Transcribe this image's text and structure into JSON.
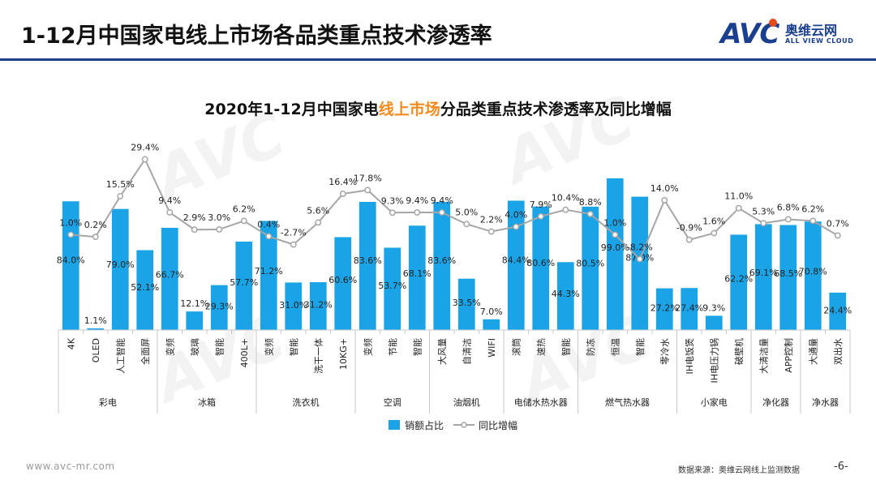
{
  "header": {
    "title": "1-12月中国家电线上市场各品类重点技术渗透率",
    "logo_mark": "AVC",
    "logo_cn": "奥维云网",
    "logo_en": "ALL VIEW CLOUD"
  },
  "chart_title": {
    "pre": "2020年1-12月中国家电",
    "highlight": "线上市场",
    "post": "分品类重点技术渗透率及同比增幅"
  },
  "watermark": "AVC",
  "footer": {
    "url": "www.avc-mr.com",
    "source": "数据来源：奥维云网线上监测数据",
    "page": "-6-"
  },
  "colors": {
    "bar": "#1aa3e6",
    "line": "#a6a6a6",
    "title_rule": "#1b3f8f",
    "highlight": "#f28a1e"
  },
  "chart_data": {
    "type": "bar+line",
    "legend": [
      "销额占比",
      "同比增幅"
    ],
    "legend_position": "bottom-center",
    "grid": false,
    "categories": [
      "4K",
      "OLED",
      "人工智能",
      "全面屏",
      "变频",
      "玻璃",
      "智能",
      "400L+",
      "变频",
      "智能",
      "洗干一体",
      "10KG+",
      "变频",
      "节能",
      "智能",
      "大风量",
      "自清洁",
      "WIFI",
      "滚筒",
      "速热",
      "智能",
      "防冻",
      "恒温",
      "智能",
      "零冷水",
      "IH电饭煲",
      "IH电压力锅",
      "破壁机",
      "大清洁量",
      "APP控制",
      "大通量",
      "双出水"
    ],
    "groups": [
      {
        "name": "彩电",
        "count": 4
      },
      {
        "name": "冰箱",
        "count": 4
      },
      {
        "name": "洗衣机",
        "count": 4
      },
      {
        "name": "空调",
        "count": 3
      },
      {
        "name": "油烟机",
        "count": 3
      },
      {
        "name": "电储水热水器",
        "count": 3
      },
      {
        "name": "燃气热水器",
        "count": 4
      },
      {
        "name": "小家电",
        "count": 3
      },
      {
        "name": "净化器",
        "count": 2
      },
      {
        "name": "净水器",
        "count": 2
      }
    ],
    "series": [
      {
        "name": "销额占比",
        "kind": "bar",
        "values": [
          84.0,
          1.1,
          79.0,
          52.1,
          66.7,
          12.1,
          29.3,
          57.7,
          71.2,
          31.0,
          31.2,
          60.6,
          83.6,
          53.7,
          68.1,
          83.6,
          33.5,
          7.0,
          84.4,
          80.6,
          44.3,
          80.5,
          99.0,
          87.0,
          27.2,
          27.4,
          9.3,
          62.2,
          69.1,
          68.5,
          70.8,
          24.4
        ]
      },
      {
        "name": "同比增幅",
        "kind": "line",
        "values": [
          1.0,
          0.2,
          15.5,
          29.4,
          9.4,
          2.9,
          3.0,
          6.2,
          0.4,
          -2.7,
          5.6,
          16.4,
          17.8,
          9.3,
          9.4,
          9.4,
          5.0,
          2.2,
          4.0,
          7.9,
          10.4,
          8.8,
          1.0,
          -8.2,
          14.0,
          -0.9,
          1.6,
          11.0,
          5.3,
          6.8,
          6.2,
          0.7
        ]
      }
    ],
    "bar_labels": [
      "84.0%",
      "1.1%",
      "79.0%",
      "52.1%",
      "66.7%",
      "12.1%",
      "29.3%",
      "57.7%",
      "71.2%",
      "31.0%",
      "31.2%",
      "60.6%",
      "83.6%",
      "53.7%",
      "68.1%",
      "83.6%",
      "33.5%",
      "7.0%",
      "84.4%",
      "80.6%",
      "44.3%",
      "80.5%",
      "99.0%",
      "87.0%",
      "27.2%",
      "27.4%",
      "9.3%",
      "62.2%",
      "69.1%",
      "68.5%",
      "70.8%",
      "24.4%"
    ],
    "line_labels": [
      "1.0%",
      "0.2%",
      "15.5%",
      "29.4%",
      "9.4%",
      "2.9%",
      "3.0%",
      "6.2%",
      "0.4%",
      "-2.7%",
      "5.6%",
      "16.4%",
      "17.8%",
      "9.3%",
      "9.4%",
      "9.4%",
      "5.0%",
      "2.2%",
      "4.0%",
      "7.9%",
      "10.4%",
      "8.8%",
      "1.0%",
      "-8.2%",
      "14.0%",
      "-0.9%",
      "1.6%",
      "11.0%",
      "5.3%",
      "6.8%",
      "6.2%",
      "0.7%"
    ],
    "bar_ylim": [
      0,
      100
    ],
    "line_ylim": [
      -12,
      32
    ]
  }
}
